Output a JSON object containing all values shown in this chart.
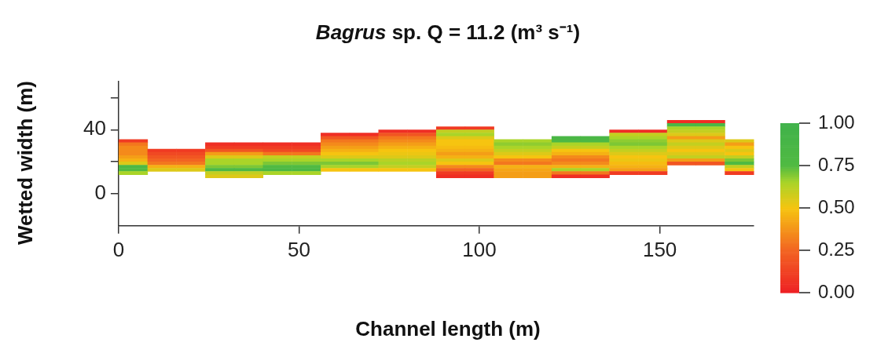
{
  "chart_data": {
    "type": "heatmap",
    "title": "Bagrus sp. Q = 11.2 (m³ s⁻¹)",
    "xlabel": "Channel length (m)",
    "ylabel": "Wetted width (m)",
    "x": [
      4,
      12,
      20,
      28,
      36,
      44,
      52,
      60,
      68,
      76,
      84,
      92,
      100,
      108,
      116,
      124,
      132,
      140,
      148,
      156,
      164,
      172
    ],
    "xlim": [
      0,
      176
    ],
    "xticks": [
      0,
      50,
      100,
      150
    ],
    "ylim": [
      -20,
      70
    ],
    "yticks": [
      0,
      {
        "value": 20,
        "label": null
      },
      40,
      {
        "value": 60,
        "label": null
      }
    ],
    "y": [
      45,
      43,
      41,
      39,
      37,
      35,
      33,
      31,
      29,
      27,
      25,
      23,
      21,
      19,
      17,
      15,
      13,
      11
    ],
    "clim": [
      0,
      1
    ],
    "cticks": [
      {
        "value": 0,
        "label": "0.00"
      },
      {
        "value": 0.25,
        "label": "0.25"
      },
      {
        "value": 0.5,
        "label": "0.50"
      },
      {
        "value": 0.75,
        "label": "0.75"
      },
      {
        "value": 1,
        "label": "1.00"
      }
    ],
    "cells": [
      [
        null,
        null,
        null,
        null,
        null,
        null,
        null,
        null,
        null,
        null,
        null,
        null,
        null,
        null,
        null,
        null,
        null,
        null,
        null,
        0.05,
        0.05,
        null
      ],
      [
        null,
        null,
        null,
        null,
        null,
        null,
        null,
        null,
        null,
        null,
        null,
        null,
        null,
        null,
        null,
        null,
        null,
        null,
        null,
        0.85,
        0.85,
        null
      ],
      [
        null,
        null,
        null,
        null,
        null,
        null,
        null,
        null,
        null,
        null,
        null,
        0.1,
        0.1,
        null,
        null,
        null,
        null,
        null,
        null,
        0.65,
        0.65,
        null
      ],
      [
        null,
        null,
        null,
        null,
        null,
        null,
        null,
        null,
        null,
        0.05,
        0.05,
        0.6,
        0.6,
        null,
        null,
        null,
        null,
        0.05,
        0.05,
        0.6,
        0.6,
        null
      ],
      [
        null,
        null,
        null,
        null,
        null,
        null,
        null,
        0.05,
        0.05,
        0.2,
        0.2,
        0.65,
        0.65,
        null,
        null,
        null,
        null,
        0.6,
        0.6,
        0.55,
        0.55,
        null
      ],
      [
        null,
        null,
        null,
        null,
        null,
        null,
        null,
        0.2,
        0.2,
        0.3,
        0.3,
        0.55,
        0.55,
        null,
        null,
        0.85,
        0.85,
        0.65,
        0.65,
        0.4,
        0.4,
        null
      ],
      [
        0.1,
        null,
        null,
        null,
        null,
        null,
        null,
        0.3,
        0.3,
        0.35,
        0.35,
        0.5,
        0.5,
        0.65,
        0.65,
        0.8,
        0.8,
        0.68,
        0.68,
        0.55,
        0.55,
        0.55
      ],
      [
        0.3,
        null,
        null,
        0.05,
        0.05,
        0.05,
        0.05,
        0.35,
        0.35,
        0.4,
        0.4,
        0.5,
        0.5,
        0.68,
        0.68,
        0.65,
        0.65,
        0.7,
        0.7,
        0.6,
        0.6,
        0.4
      ],
      [
        0.35,
        null,
        null,
        0.1,
        0.1,
        0.1,
        0.1,
        0.4,
        0.4,
        0.45,
        0.45,
        0.48,
        0.48,
        0.65,
        0.65,
        0.6,
        0.6,
        0.65,
        0.65,
        0.55,
        0.55,
        0.5
      ],
      [
        0.35,
        0.1,
        0.1,
        0.2,
        0.2,
        0.15,
        0.15,
        0.45,
        0.45,
        0.5,
        0.5,
        0.45,
        0.45,
        0.6,
        0.6,
        0.5,
        0.5,
        0.6,
        0.6,
        0.5,
        0.5,
        0.55
      ],
      [
        0.35,
        0.15,
        0.15,
        0.4,
        0.4,
        0.3,
        0.3,
        0.5,
        0.5,
        0.52,
        0.52,
        0.4,
        0.4,
        0.55,
        0.55,
        0.45,
        0.45,
        0.55,
        0.55,
        0.55,
        0.55,
        0.5
      ],
      [
        0.4,
        0.2,
        0.2,
        0.55,
        0.55,
        0.6,
        0.6,
        0.55,
        0.55,
        0.55,
        0.55,
        0.45,
        0.45,
        0.5,
        0.5,
        0.35,
        0.35,
        0.5,
        0.5,
        0.6,
        0.6,
        0.6
      ],
      [
        0.45,
        0.25,
        0.25,
        0.65,
        0.65,
        0.65,
        0.65,
        0.65,
        0.65,
        0.62,
        0.62,
        0.55,
        0.55,
        0.35,
        0.35,
        0.3,
        0.3,
        0.52,
        0.52,
        0.4,
        0.4,
        0.7
      ],
      [
        0.55,
        0.3,
        0.3,
        0.65,
        0.65,
        0.7,
        0.7,
        0.7,
        0.7,
        0.65,
        0.65,
        0.5,
        0.5,
        0.3,
        0.3,
        0.35,
        0.35,
        0.48,
        0.48,
        0.2,
        0.2,
        0.75
      ],
      [
        0.8,
        0.45,
        0.45,
        0.7,
        0.7,
        0.75,
        0.75,
        0.65,
        0.65,
        0.6,
        0.6,
        0.35,
        0.35,
        0.45,
        0.45,
        0.45,
        0.45,
        0.45,
        0.45,
        null,
        null,
        0.6
      ],
      [
        0.75,
        0.55,
        0.55,
        0.8,
        0.8,
        0.85,
        0.85,
        0.5,
        0.5,
        0.5,
        0.5,
        0.25,
        0.25,
        0.42,
        0.42,
        0.65,
        0.65,
        0.4,
        0.4,
        null,
        null,
        0.5
      ],
      [
        0.65,
        null,
        null,
        0.6,
        0.6,
        0.65,
        0.65,
        null,
        null,
        null,
        null,
        0.1,
        0.1,
        0.4,
        0.4,
        0.3,
        0.3,
        0.1,
        0.1,
        null,
        null,
        0.1
      ],
      [
        null,
        null,
        null,
        0.55,
        0.55,
        null,
        null,
        null,
        null,
        null,
        null,
        0.05,
        0.05,
        0.4,
        0.4,
        0.05,
        0.05,
        null,
        null,
        null,
        null,
        null
      ]
    ]
  }
}
